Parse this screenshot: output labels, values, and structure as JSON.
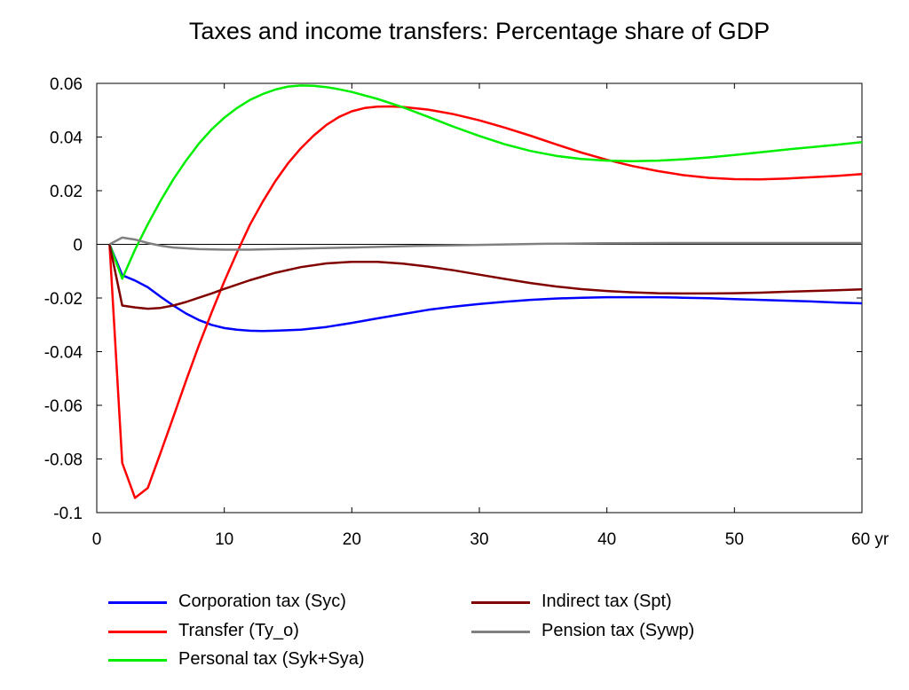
{
  "chart_data": {
    "type": "line",
    "title": "Taxes and income transfers: Percentage share of GDP",
    "xlim": [
      0,
      60
    ],
    "ylim": [
      -0.1,
      0.06
    ],
    "x_ticks": [
      0,
      10,
      20,
      30,
      40,
      50,
      60
    ],
    "x_tick_labels": [
      "0",
      "10",
      "20",
      "30",
      "40",
      "50",
      "60 yr"
    ],
    "y_ticks": [
      0.06,
      0.04,
      0.02,
      0,
      -0.02,
      -0.04,
      -0.06,
      -0.08,
      -0.1
    ],
    "y_tick_labels": [
      "0.06",
      "0.04",
      "0.02",
      "0",
      "-0.02",
      "-0.04",
      "-0.06",
      "-0.08",
      "-0.1"
    ],
    "zero_line": true,
    "grid": false,
    "legend_position": "bottom",
    "series": [
      {
        "name": "Corporation tax (Syc)",
        "color": "#0000ff",
        "x": [
          1,
          2,
          3,
          4,
          5,
          6,
          7,
          8,
          9,
          10,
          11,
          12,
          13,
          14,
          16,
          18,
          20,
          22,
          24,
          26,
          28,
          30,
          32,
          34,
          36,
          38,
          40,
          42,
          44,
          46,
          48,
          50,
          52,
          54,
          56,
          58,
          60
        ],
        "y": [
          0,
          -0.0115,
          -0.0135,
          -0.016,
          -0.0195,
          -0.0228,
          -0.0258,
          -0.0282,
          -0.03,
          -0.0312,
          -0.0318,
          -0.0322,
          -0.0323,
          -0.0322,
          -0.0318,
          -0.0308,
          -0.0293,
          -0.0276,
          -0.026,
          -0.0244,
          -0.0232,
          -0.0222,
          -0.0214,
          -0.0207,
          -0.0202,
          -0.0199,
          -0.0197,
          -0.0197,
          -0.0197,
          -0.0199,
          -0.0201,
          -0.0204,
          -0.0207,
          -0.021,
          -0.0213,
          -0.0217,
          -0.022
        ]
      },
      {
        "name": "Transfer (Ty_o)",
        "color": "#ff0000",
        "x": [
          1,
          2,
          3,
          4,
          5,
          6,
          7,
          8,
          9,
          10,
          11,
          12,
          13,
          14,
          15,
          16,
          17,
          18,
          19,
          20,
          21,
          22,
          23,
          24,
          26,
          28,
          30,
          32,
          34,
          36,
          38,
          40,
          42,
          44,
          46,
          48,
          50,
          52,
          54,
          56,
          58,
          60
        ],
        "y": [
          0,
          -0.0815,
          -0.0945,
          -0.0908,
          -0.0778,
          -0.0644,
          -0.0508,
          -0.0378,
          -0.0255,
          -0.0138,
          -0.003,
          0.0072,
          0.0158,
          0.0235,
          0.0302,
          0.0358,
          0.0405,
          0.0445,
          0.0475,
          0.0496,
          0.0508,
          0.0513,
          0.0514,
          0.0512,
          0.0502,
          0.0485,
          0.0462,
          0.0435,
          0.0405,
          0.0373,
          0.0342,
          0.0315,
          0.0292,
          0.0273,
          0.0258,
          0.0248,
          0.0243,
          0.0242,
          0.0245,
          0.025,
          0.0255,
          0.0262
        ]
      },
      {
        "name": "Personal tax (Syk+Sya)",
        "color": "#00ee00",
        "x": [
          1,
          2,
          3,
          4,
          5,
          6,
          7,
          8,
          9,
          10,
          11,
          12,
          13,
          14,
          15,
          16,
          17,
          18,
          19,
          20,
          22,
          24,
          26,
          28,
          30,
          32,
          34,
          36,
          38,
          40,
          42,
          44,
          46,
          48,
          50,
          52,
          54,
          56,
          58,
          60
        ],
        "y": [
          0,
          -0.0128,
          -0.002,
          0.0075,
          0.0162,
          0.0242,
          0.0312,
          0.0375,
          0.0428,
          0.0472,
          0.0508,
          0.0538,
          0.056,
          0.0577,
          0.0588,
          0.0592,
          0.0591,
          0.0586,
          0.0578,
          0.0568,
          0.0542,
          0.0511,
          0.0475,
          0.0438,
          0.0404,
          0.0373,
          0.0348,
          0.033,
          0.0318,
          0.0312,
          0.031,
          0.0312,
          0.0317,
          0.0324,
          0.0333,
          0.0343,
          0.0353,
          0.0362,
          0.0371,
          0.0381
        ]
      },
      {
        "name": "Indirect tax (Spt)",
        "color": "#800000",
        "x": [
          1,
          2,
          3,
          4,
          5,
          6,
          7,
          8,
          9,
          10,
          12,
          14,
          16,
          18,
          20,
          22,
          24,
          26,
          28,
          30,
          32,
          34,
          36,
          38,
          40,
          42,
          44,
          46,
          48,
          50,
          52,
          54,
          56,
          58,
          60
        ],
        "y": [
          0,
          -0.0228,
          -0.0235,
          -0.024,
          -0.0237,
          -0.0228,
          -0.0215,
          -0.0199,
          -0.0183,
          -0.0166,
          -0.0134,
          -0.0106,
          -0.0085,
          -0.0071,
          -0.0065,
          -0.0065,
          -0.0072,
          -0.0083,
          -0.0097,
          -0.0113,
          -0.0129,
          -0.0144,
          -0.0157,
          -0.0167,
          -0.0174,
          -0.0179,
          -0.0182,
          -0.0183,
          -0.0183,
          -0.0182,
          -0.018,
          -0.0177,
          -0.0174,
          -0.0171,
          -0.0168
        ]
      },
      {
        "name": "Pension tax (Sywp)",
        "color": "#808080",
        "x": [
          1,
          2,
          3,
          4,
          5,
          6,
          8,
          10,
          12,
          14,
          16,
          20,
          25,
          30,
          35,
          40,
          45,
          50,
          55,
          60
        ],
        "y": [
          0,
          0.0025,
          0.0018,
          0.0005,
          -0.0005,
          -0.0012,
          -0.0018,
          -0.002,
          -0.002,
          -0.0018,
          -0.0016,
          -0.0012,
          -0.0006,
          -0.0002,
          0.0002,
          0.0004,
          0.0005,
          0.0005,
          0.0005,
          0.0005
        ]
      }
    ]
  },
  "legend": {
    "items": [
      {
        "label": "Corporation tax (Syc)",
        "color": "#0000ff"
      },
      {
        "label": "Transfer (Ty_o)",
        "color": "#ff0000"
      },
      {
        "label": "Personal tax (Syk+Sya)",
        "color": "#00ee00"
      },
      {
        "label": "Indirect tax (Spt)",
        "color": "#800000"
      },
      {
        "label": "Pension tax (Sywp)",
        "color": "#808080"
      }
    ]
  }
}
